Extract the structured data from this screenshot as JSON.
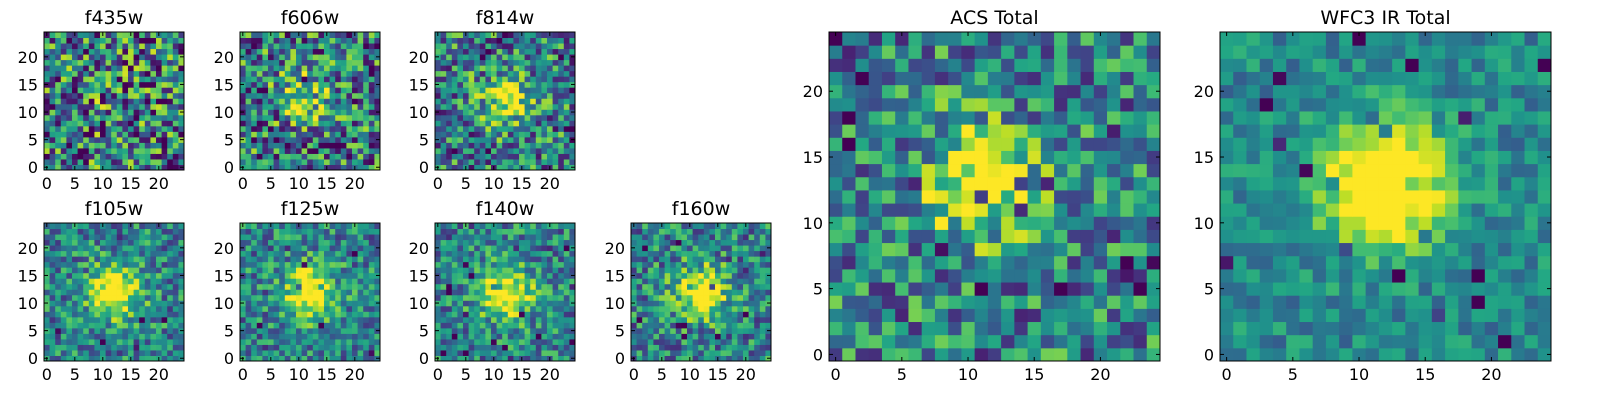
{
  "chart_data": [
    {
      "type": "heatmap",
      "title": "f435w",
      "colormap": "viridis",
      "grid_size": 25,
      "xlim": [
        0,
        24
      ],
      "ylim": [
        0,
        24
      ],
      "x_ticks": [
        0,
        5,
        10,
        15,
        20
      ],
      "y_ticks": [
        0,
        5,
        10,
        15,
        20
      ],
      "source_peak_xy": [
        12,
        12
      ],
      "source_strength": 0.05,
      "noise_level": 0.5
    },
    {
      "type": "heatmap",
      "title": "f606w",
      "colormap": "viridis",
      "grid_size": 25,
      "xlim": [
        0,
        24
      ],
      "ylim": [
        0,
        24
      ],
      "x_ticks": [
        0,
        5,
        10,
        15,
        20
      ],
      "y_ticks": [
        0,
        5,
        10,
        15,
        20
      ],
      "source_peak_xy": [
        11,
        13
      ],
      "source_strength": 0.25,
      "noise_level": 0.45
    },
    {
      "type": "heatmap",
      "title": "f814w",
      "colormap": "viridis",
      "grid_size": 25,
      "xlim": [
        0,
        24
      ],
      "ylim": [
        0,
        24
      ],
      "x_ticks": [
        0,
        5,
        10,
        15,
        20
      ],
      "y_ticks": [
        0,
        5,
        10,
        15,
        20
      ],
      "source_peak_xy": [
        12,
        12
      ],
      "source_strength": 0.4,
      "noise_level": 0.4
    },
    {
      "type": "heatmap",
      "title": "f105w",
      "colormap": "viridis",
      "grid_size": 25,
      "xlim": [
        0,
        24
      ],
      "ylim": [
        0,
        24
      ],
      "x_ticks": [
        0,
        5,
        10,
        15,
        20
      ],
      "y_ticks": [
        0,
        5,
        10,
        15,
        20
      ],
      "source_peak_xy": [
        12,
        12
      ],
      "source_strength": 0.6,
      "noise_level": 0.3
    },
    {
      "type": "heatmap",
      "title": "f125w",
      "colormap": "viridis",
      "grid_size": 25,
      "xlim": [
        0,
        24
      ],
      "ylim": [
        0,
        24
      ],
      "x_ticks": [
        0,
        5,
        10,
        15,
        20
      ],
      "y_ticks": [
        0,
        5,
        10,
        15,
        20
      ],
      "source_peak_xy": [
        12,
        12
      ],
      "source_strength": 0.6,
      "noise_level": 0.3
    },
    {
      "type": "heatmap",
      "title": "f140w",
      "colormap": "viridis",
      "grid_size": 25,
      "xlim": [
        0,
        24
      ],
      "ylim": [
        0,
        24
      ],
      "x_ticks": [
        0,
        5,
        10,
        15,
        20
      ],
      "y_ticks": [
        0,
        5,
        10,
        15,
        20
      ],
      "source_peak_xy": [
        12,
        12
      ],
      "source_strength": 0.6,
      "noise_level": 0.3
    },
    {
      "type": "heatmap",
      "title": "f160w",
      "colormap": "viridis",
      "grid_size": 25,
      "xlim": [
        0,
        24
      ],
      "ylim": [
        0,
        24
      ],
      "x_ticks": [
        0,
        5,
        10,
        15,
        20
      ],
      "y_ticks": [
        0,
        5,
        10,
        15,
        20
      ],
      "source_peak_xy": [
        12,
        12
      ],
      "source_strength": 0.55,
      "noise_level": 0.32
    },
    {
      "type": "heatmap",
      "title": "ACS Total",
      "colormap": "viridis",
      "grid_size": 25,
      "xlim": [
        0,
        24
      ],
      "ylim": [
        0,
        24
      ],
      "x_ticks": [
        0,
        5,
        10,
        15,
        20
      ],
      "y_ticks": [
        0,
        5,
        10,
        15,
        20
      ],
      "source_peak_xy": [
        11,
        13
      ],
      "source_strength": 0.45,
      "noise_level": 0.35
    },
    {
      "type": "heatmap",
      "title": "WFC3 IR Total",
      "colormap": "viridis",
      "grid_size": 25,
      "xlim": [
        0,
        24
      ],
      "ylim": [
        0,
        24
      ],
      "x_ticks": [
        0,
        5,
        10,
        15,
        20
      ],
      "y_ticks": [
        0,
        5,
        10,
        15,
        20
      ],
      "source_peak_xy": [
        12,
        13
      ],
      "source_strength": 0.75,
      "noise_level": 0.18
    }
  ]
}
